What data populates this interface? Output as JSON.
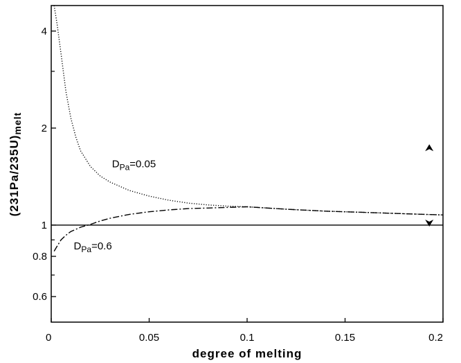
{
  "chart_data": {
    "type": "line",
    "title": "",
    "xlabel": "degree of melting",
    "ylabel": {
      "main": "(231Pa/235U)",
      "sub": "melt"
    },
    "xlim": [
      0,
      0.2
    ],
    "ylim": [
      0.5,
      4.8
    ],
    "y_scale": "log",
    "grid": false,
    "x_ticks": [
      {
        "value": 0,
        "label": "0"
      },
      {
        "value": 0.05,
        "label": "0.05"
      },
      {
        "value": 0.1,
        "label": "0.1"
      },
      {
        "value": 0.15,
        "label": "0.15"
      },
      {
        "value": 0.2,
        "label": "0.2"
      }
    ],
    "y_ticks": [
      {
        "value": 0.6,
        "label": "0.6"
      },
      {
        "value": 0.8,
        "label": "0.8"
      },
      {
        "value": 1,
        "label": "1"
      },
      {
        "value": 2,
        "label": "2"
      },
      {
        "value": 4,
        "label": "4"
      }
    ],
    "y_minor_ticks": [
      0.7,
      0.9,
      3
    ],
    "reference_line": {
      "y": 1
    },
    "series": [
      {
        "style": "dotted",
        "label": {
          "d": "D",
          "sub": "Pa",
          "rest": "=0.05"
        },
        "label_at": {
          "x": 0.031,
          "y": 1.51
        },
        "x": [
          0.0015,
          0.003,
          0.005,
          0.0075,
          0.01,
          0.0125,
          0.015,
          0.02,
          0.025,
          0.03,
          0.04,
          0.05,
          0.06,
          0.07,
          0.08,
          0.09,
          0.1,
          0.12,
          0.14,
          0.16,
          0.18,
          0.2
        ],
        "y": [
          4.8,
          4.2,
          3.4,
          2.6,
          2.15,
          1.88,
          1.7,
          1.52,
          1.42,
          1.36,
          1.28,
          1.23,
          1.195,
          1.17,
          1.155,
          1.145,
          1.14,
          1.12,
          1.105,
          1.095,
          1.085,
          1.075
        ]
      },
      {
        "style": "dash-dot",
        "label": {
          "d": "D",
          "sub": "Pa",
          "rest": "=0.6"
        },
        "label_at": {
          "x": 0.0115,
          "y": 0.84
        },
        "x": [
          0.0015,
          0.003,
          0.005,
          0.0075,
          0.01,
          0.0125,
          0.015,
          0.02,
          0.025,
          0.03,
          0.04,
          0.05,
          0.06,
          0.07,
          0.08,
          0.09,
          0.1,
          0.12,
          0.14,
          0.16,
          0.18,
          0.2
        ],
        "y": [
          0.83,
          0.86,
          0.9,
          0.93,
          0.955,
          0.97,
          0.985,
          1.005,
          1.03,
          1.05,
          1.08,
          1.1,
          1.115,
          1.125,
          1.13,
          1.135,
          1.14,
          1.12,
          1.105,
          1.095,
          1.085,
          1.075
        ]
      }
    ],
    "markers": [
      {
        "shape": "triangle-up",
        "x": 0.193,
        "y": 1.73
      },
      {
        "shape": "triangle-down",
        "x": 0.193,
        "y": 1.02
      }
    ]
  }
}
